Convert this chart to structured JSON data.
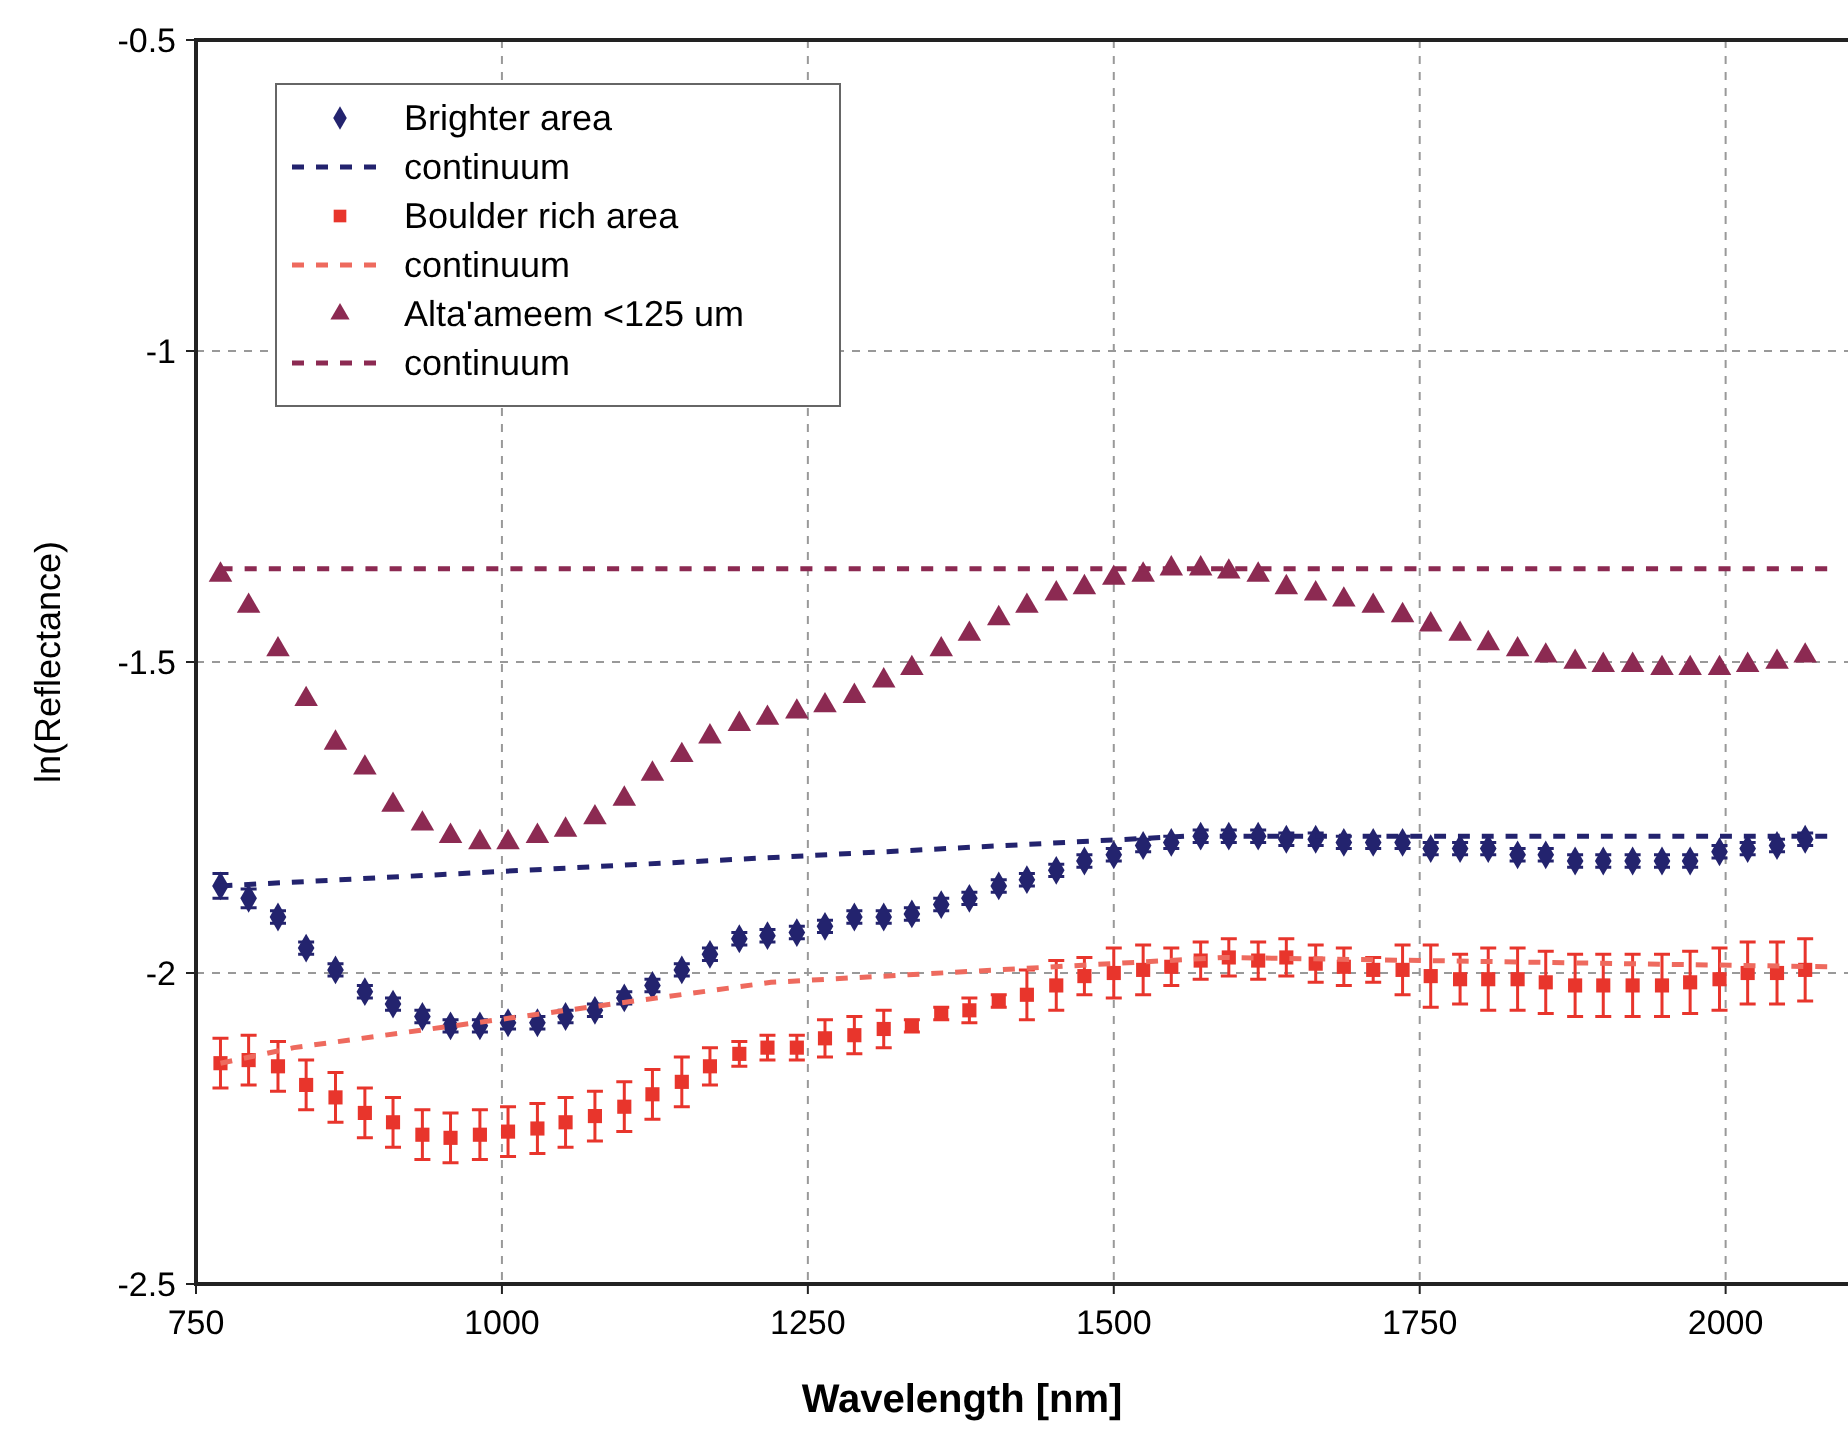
{
  "chart_data": {
    "type": "scatter",
    "xlabel": "Wavelength [nm]",
    "ylabel": "ln(Reflectance)",
    "xlim": [
      750,
      2100
    ],
    "ylim": [
      -2.5,
      -0.5
    ],
    "xticks": [
      750,
      1000,
      1250,
      1500,
      1750,
      2000
    ],
    "yticks": [
      -2.5,
      -2,
      -1.5,
      -1,
      -0.5
    ],
    "grid": true,
    "legend": "top left",
    "x": [
      770,
      793,
      817,
      840,
      864,
      888,
      911,
      935,
      958,
      982,
      1005,
      1029,
      1052,
      1076,
      1100,
      1123,
      1147,
      1170,
      1194,
      1217,
      1241,
      1264,
      1288,
      1312,
      1335,
      1359,
      1382,
      1406,
      1429,
      1453,
      1476,
      1500,
      1524,
      1547,
      1571,
      1594,
      1618,
      1641,
      1665,
      1688,
      1712,
      1736,
      1759,
      1783,
      1806,
      1830,
      1853,
      1877,
      1900,
      1924,
      1948,
      1971,
      1995,
      2018,
      2042,
      2065
    ],
    "series": [
      {
        "name": "Brighter area",
        "marker": "diamond",
        "color": "#23236e",
        "values": [
          -1.86,
          -1.88,
          -1.91,
          -1.96,
          -1.995,
          -2.03,
          -2.05,
          -2.07,
          -2.085,
          -2.085,
          -2.08,
          -2.08,
          -2.07,
          -2.06,
          -2.04,
          -2.02,
          -1.995,
          -1.97,
          -1.945,
          -1.94,
          -1.935,
          -1.925,
          -1.91,
          -1.91,
          -1.905,
          -1.89,
          -1.88,
          -1.86,
          -1.85,
          -1.835,
          -1.82,
          -1.81,
          -1.795,
          -1.79,
          -1.78,
          -1.78,
          -1.78,
          -1.785,
          -1.785,
          -1.79,
          -1.79,
          -1.79,
          -1.8,
          -1.8,
          -1.8,
          -1.81,
          -1.81,
          -1.82,
          -1.82,
          -1.82,
          -1.82,
          -1.82,
          -1.805,
          -1.8,
          -1.795,
          -1.785
        ],
        "errors": [
          0.02,
          0.015,
          0.01,
          0.01,
          0.01,
          0.01,
          0.01,
          0.01,
          0.01,
          0.01,
          0.01,
          0.01,
          0.01,
          0.01,
          0.01,
          0.01,
          0.01,
          0.01,
          0.01,
          0.01,
          0.01,
          0.01,
          0.01,
          0.01,
          0.01,
          0.01,
          0.01,
          0.01,
          0.01,
          0.01,
          0.01,
          0.01,
          0.01,
          0.01,
          0.01,
          0.01,
          0.01,
          0.01,
          0.01,
          0.01,
          0.01,
          0.01,
          0.01,
          0.01,
          0.01,
          0.01,
          0.01,
          0.01,
          0.01,
          0.01,
          0.01,
          0.01,
          0.01,
          0.01,
          0.01,
          0.01
        ]
      },
      {
        "name": "continuum",
        "type": "line",
        "line_style": "dashed",
        "color": "#23236e",
        "x": [
          770,
          1560,
          2083
        ],
        "values": [
          -1.86,
          -1.78,
          -1.78
        ]
      },
      {
        "name": "Boulder rich area",
        "marker": "square",
        "color": "#e8352c",
        "values": [
          -2.145,
          -2.14,
          -2.15,
          -2.18,
          -2.2,
          -2.225,
          -2.24,
          -2.26,
          -2.265,
          -2.26,
          -2.255,
          -2.25,
          -2.24,
          -2.23,
          -2.215,
          -2.195,
          -2.175,
          -2.15,
          -2.13,
          -2.12,
          -2.12,
          -2.105,
          -2.1,
          -2.09,
          -2.085,
          -2.065,
          -2.06,
          -2.045,
          -2.035,
          -2.02,
          -2.005,
          -2,
          -1.995,
          -1.99,
          -1.98,
          -1.975,
          -1.98,
          -1.975,
          -1.985,
          -1.99,
          -1.995,
          -1.995,
          -2.005,
          -2.01,
          -2.01,
          -2.01,
          -2.015,
          -2.02,
          -2.02,
          -2.02,
          -2.02,
          -2.015,
          -2.01,
          -2,
          -2,
          -1.995
        ],
        "errors": [
          0.04,
          0.04,
          0.04,
          0.04,
          0.04,
          0.04,
          0.04,
          0.04,
          0.04,
          0.04,
          0.04,
          0.04,
          0.04,
          0.04,
          0.04,
          0.04,
          0.04,
          0.03,
          0.02,
          0.02,
          0.02,
          0.03,
          0.03,
          0.03,
          0.01,
          0.01,
          0.02,
          0.01,
          0.04,
          0.04,
          0.03,
          0.04,
          0.04,
          0.03,
          0.03,
          0.03,
          0.03,
          0.03,
          0.03,
          0.03,
          0.02,
          0.04,
          0.05,
          0.04,
          0.05,
          0.05,
          0.05,
          0.05,
          0.05,
          0.05,
          0.05,
          0.05,
          0.05,
          0.05,
          0.05,
          0.05
        ]
      },
      {
        "name": "continuum",
        "type": "line",
        "line_style": "dashed",
        "color": "#ee6a5e",
        "x": [
          770,
          830,
          1220,
          1590,
          2083
        ],
        "values": [
          -2.145,
          -2.12,
          -2.015,
          -1.975,
          -1.99
        ]
      },
      {
        "name": "Alta'ameem <125 um",
        "marker": "triangle",
        "color": "#8c2a52",
        "values": [
          -1.36,
          -1.41,
          -1.48,
          -1.56,
          -1.63,
          -1.67,
          -1.73,
          -1.76,
          -1.78,
          -1.79,
          -1.79,
          -1.78,
          -1.77,
          -1.75,
          -1.72,
          -1.68,
          -1.65,
          -1.62,
          -1.6,
          -1.59,
          -1.58,
          -1.57,
          -1.555,
          -1.53,
          -1.51,
          -1.48,
          -1.455,
          -1.43,
          -1.41,
          -1.39,
          -1.38,
          -1.365,
          -1.36,
          -1.35,
          -1.35,
          -1.355,
          -1.36,
          -1.38,
          -1.39,
          -1.4,
          -1.41,
          -1.425,
          -1.44,
          -1.455,
          -1.47,
          -1.48,
          -1.49,
          -1.5,
          -1.505,
          -1.505,
          -1.51,
          -1.51,
          -1.51,
          -1.505,
          -1.5,
          -1.49
        ]
      },
      {
        "name": "continuum",
        "type": "line",
        "line_style": "dashed",
        "color": "#8c2a52",
        "x": [
          770,
          2083
        ],
        "values": [
          -1.35,
          -1.35
        ]
      }
    ]
  }
}
